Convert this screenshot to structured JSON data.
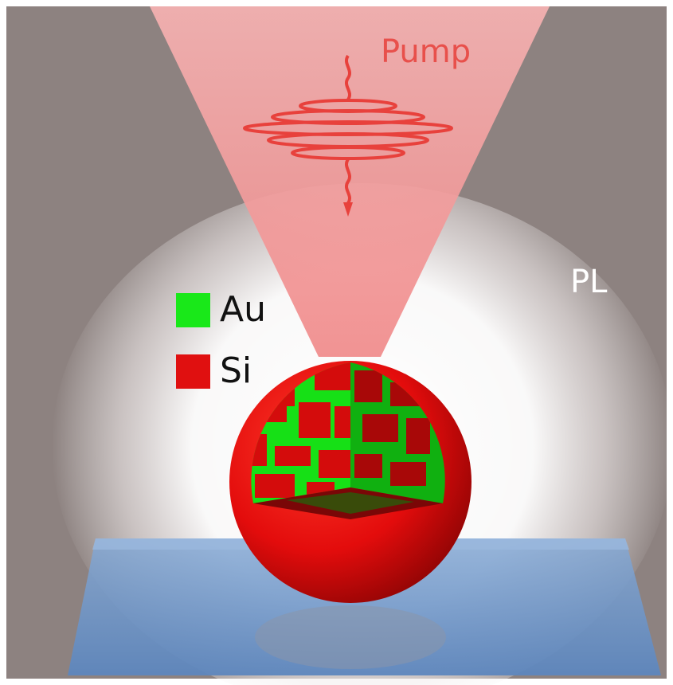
{
  "labels": {
    "pump": "Pump",
    "pl": "PL"
  },
  "legend": [
    {
      "name": "Au",
      "color": "#19e819"
    },
    {
      "name": "Si",
      "color": "#e01010"
    }
  ],
  "colors": {
    "background": "#8d8280",
    "beam": "#f4a6a6",
    "pulse": "#e8413c",
    "sphere": "#e40f0f",
    "glow": "#ffffff",
    "substrate": "#6f97c8",
    "pump_text": "#e8504b",
    "pl_text": "#ffffff"
  }
}
